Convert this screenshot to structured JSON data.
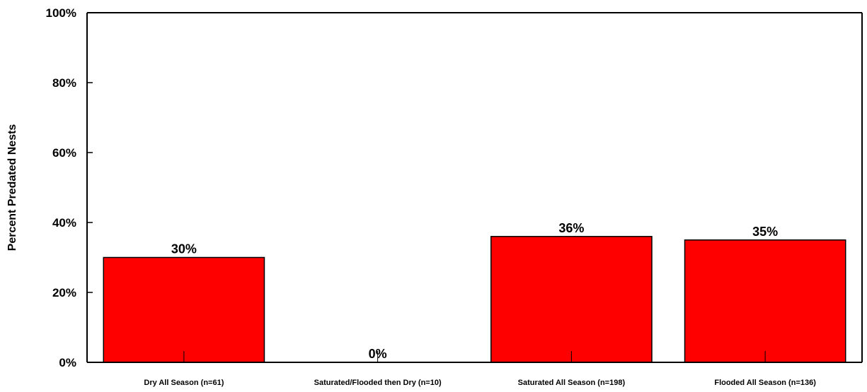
{
  "chart_data": {
    "type": "bar",
    "title": "",
    "xlabel": "",
    "ylabel": "Percent Predated Nests",
    "categories": [
      "Dry All Season (n=61)",
      "Saturated/Flooded then Dry (n=10)",
      "Saturated All Season (n=198)",
      "Flooded All Season (n=136)"
    ],
    "values": [
      30,
      0,
      36,
      35
    ],
    "data_labels": [
      "30%",
      "0%",
      "36%",
      "35%"
    ],
    "ylim": [
      0,
      100
    ],
    "yticks": [
      0,
      20,
      40,
      60,
      80,
      100
    ],
    "ytick_labels": [
      "0%",
      "20%",
      "40%",
      "60%",
      "80%",
      "100%"
    ],
    "grid": false,
    "legend": "none",
    "bar_color": "#ff0000",
    "bar_edge_color": "#000000"
  }
}
